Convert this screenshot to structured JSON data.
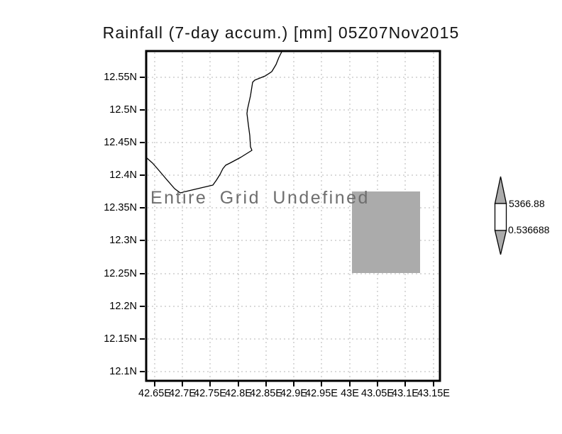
{
  "title": "Rainfall (7-day accum.) [mm] 05Z07Nov2015",
  "plot": {
    "status_text": "Entire Grid Undefined",
    "x_axis": {
      "ticks": [
        "42.65E",
        "42.7E",
        "42.75E",
        "42.8E",
        "42.85E",
        "42.9E",
        "42.95E",
        "43E",
        "43.05E",
        "43.1E",
        "43.15E"
      ]
    },
    "y_axis": {
      "ticks": [
        "12.55N",
        "12.5N",
        "12.45N",
        "12.4N",
        "12.35N",
        "12.3N",
        "12.25N",
        "12.2N",
        "12.15N",
        "12.1N"
      ]
    }
  },
  "colorbar": {
    "max_label": "5366.88",
    "min_label": "0.536688",
    "arrow_fill": "#ababab",
    "box_fill": "#ffffff"
  },
  "colors": {
    "gridline": "#b6b6b6",
    "coastline": "#000000",
    "undefined_shade": "#ababab",
    "status_text": "#6e6e6e"
  },
  "chart_data": {
    "type": "heatmap",
    "title": "Rainfall (7-day accum.) [mm] 05Z07Nov2015",
    "variable": "Rainfall (7-day accumulation)",
    "units": "mm",
    "valid_time": "05Z07Nov2015",
    "status": "Entire Grid Undefined",
    "x": {
      "tick_labels": [
        "42.65E",
        "42.7E",
        "42.75E",
        "42.8E",
        "42.85E",
        "42.9E",
        "42.95E",
        "43E",
        "43.05E",
        "43.1E",
        "43.15E"
      ],
      "tick_values": [
        42.65,
        42.7,
        42.75,
        42.8,
        42.85,
        42.9,
        42.95,
        43.0,
        43.05,
        43.1,
        43.15
      ],
      "range_approx": [
        42.63,
        43.16
      ]
    },
    "y": {
      "tick_labels": [
        "12.1N",
        "12.15N",
        "12.2N",
        "12.25N",
        "12.3N",
        "12.35N",
        "12.4N",
        "12.45N",
        "12.5N",
        "12.55N"
      ],
      "tick_values": [
        12.1,
        12.15,
        12.2,
        12.25,
        12.3,
        12.35,
        12.4,
        12.45,
        12.5,
        12.55
      ],
      "range_approx": [
        12.08,
        12.56
      ]
    },
    "grid": true,
    "values": [],
    "note": "All grid values undefined; no shaded rainfall field plotted.",
    "colorbar": {
      "min": 0.536688,
      "max": 5366.88
    },
    "overlays": [
      {
        "name": "coastline",
        "description": "black coastline through upper-left of map"
      },
      {
        "name": "gray-rectangle",
        "lon_range_approx": [
          43.0,
          43.125
        ],
        "lat_range_approx": [
          12.25,
          12.375
        ],
        "color": "#ababab"
      }
    ]
  }
}
